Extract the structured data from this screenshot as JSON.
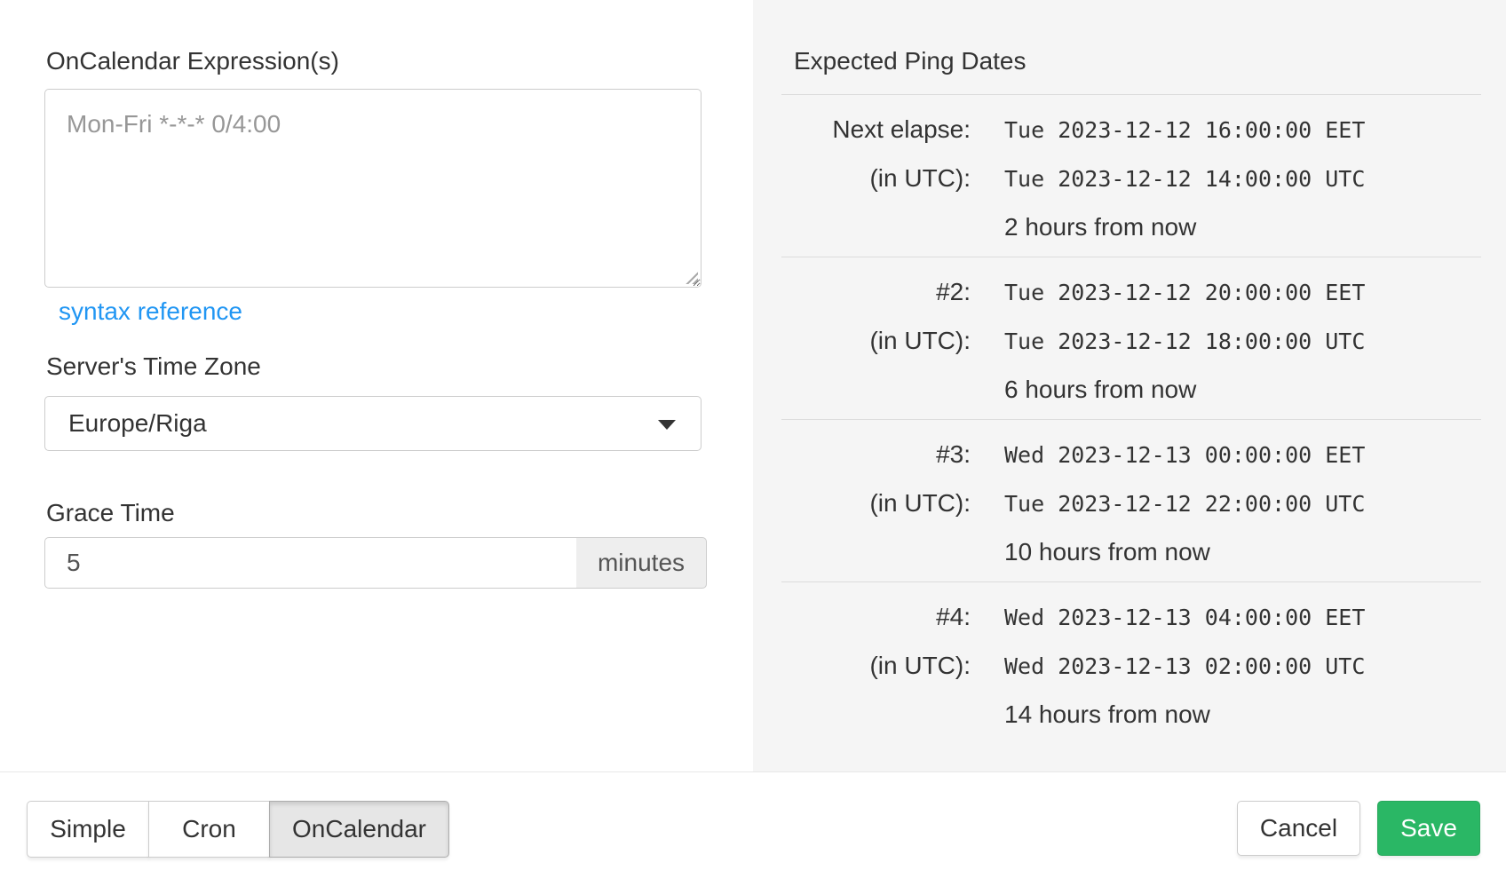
{
  "form": {
    "expression_label": "OnCalendar Expression(s)",
    "expression_value": "Mon-Fri *-*-* 0/4:00",
    "syntax_link_label": "syntax reference",
    "timezone_label": "Server's Time Zone",
    "timezone_value": "Europe/Riga",
    "grace_label": "Grace Time",
    "grace_value": "5",
    "grace_unit": "minutes"
  },
  "ping_dates": {
    "title": "Expected Ping Dates",
    "utc_label": "(in UTC):",
    "entries": [
      {
        "label": "Next elapse:",
        "local": "Tue 2023-12-12 16:00:00 EET",
        "utc": "Tue 2023-12-12 14:00:00 UTC",
        "relative": "2 hours from now"
      },
      {
        "label": "#2:",
        "local": "Tue 2023-12-12 20:00:00 EET",
        "utc": "Tue 2023-12-12 18:00:00 UTC",
        "relative": "6 hours from now"
      },
      {
        "label": "#3:",
        "local": "Wed 2023-12-13 00:00:00 EET",
        "utc": "Tue 2023-12-12 22:00:00 UTC",
        "relative": "10 hours from now"
      },
      {
        "label": "#4:",
        "local": "Wed 2023-12-13 04:00:00 EET",
        "utc": "Wed 2023-12-13 02:00:00 UTC",
        "relative": "14 hours from now"
      }
    ]
  },
  "footer": {
    "tabs": [
      {
        "label": "Simple",
        "active": false
      },
      {
        "label": "Cron",
        "active": false
      },
      {
        "label": "OnCalendar",
        "active": true
      }
    ],
    "cancel_label": "Cancel",
    "save_label": "Save"
  },
  "colors": {
    "accent_green": "#2ab765",
    "link_blue": "#2196f3",
    "panel_bg": "#f5f5f5"
  }
}
